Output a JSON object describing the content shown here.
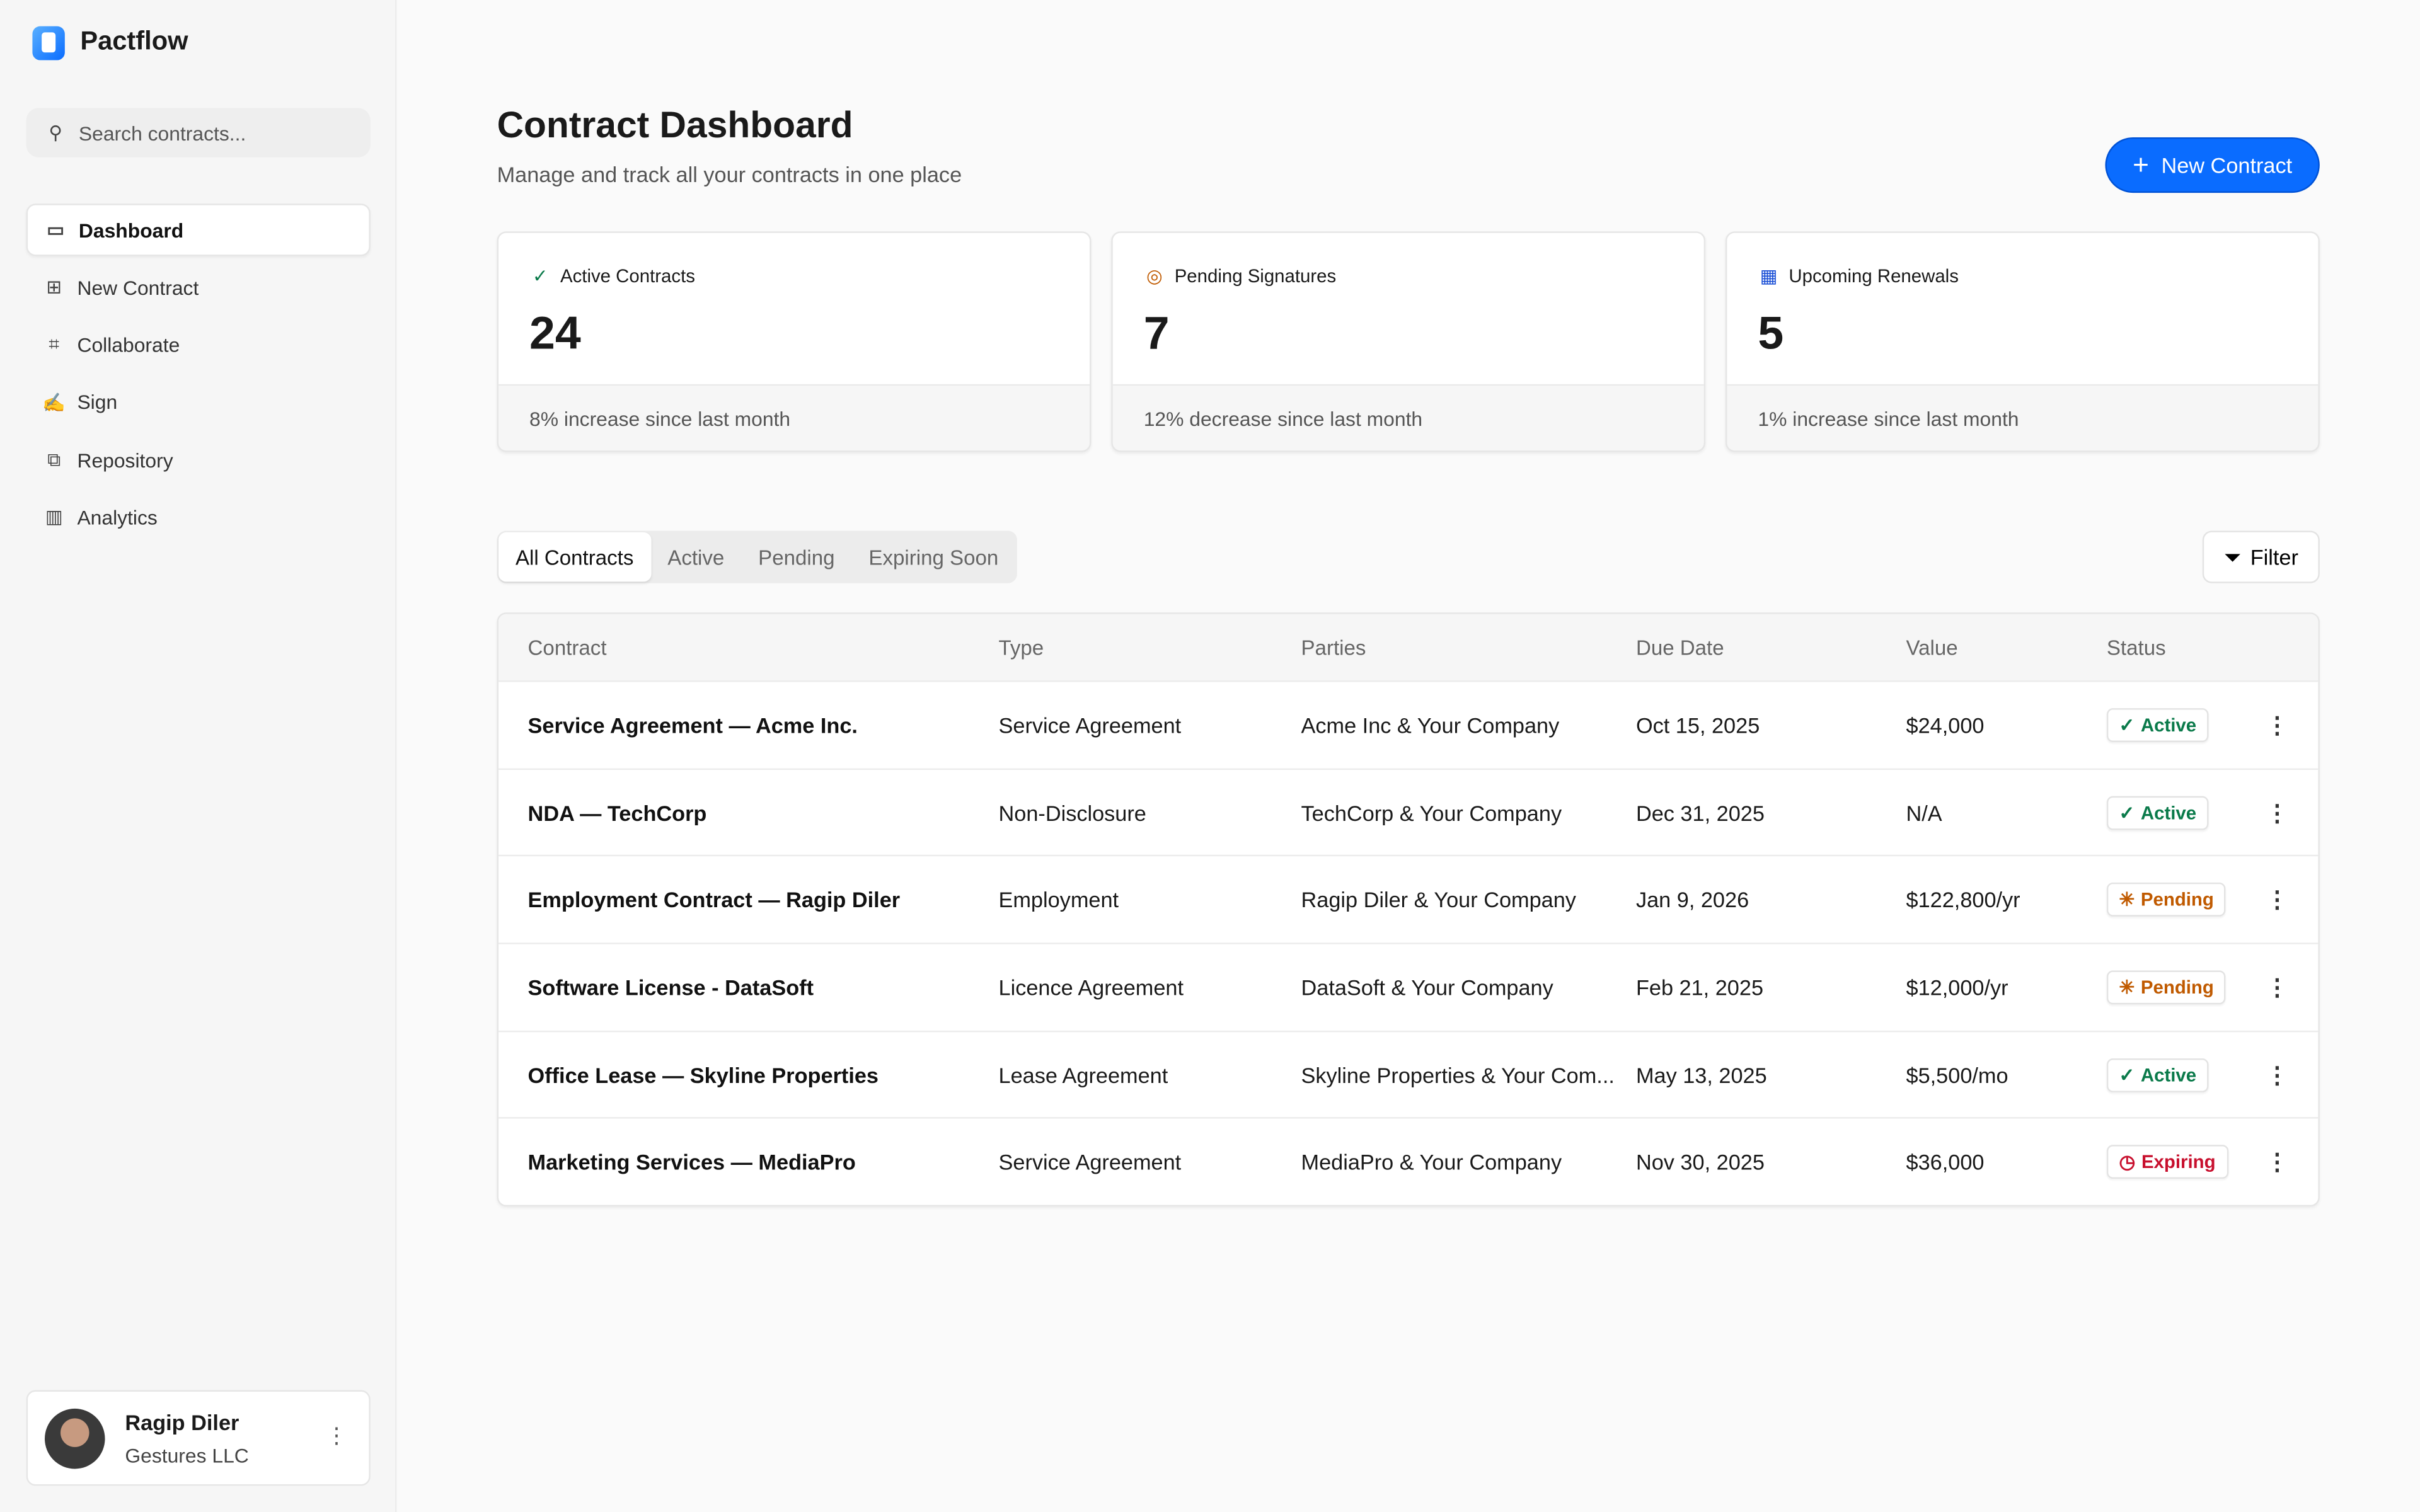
{
  "app": {
    "name": "Pactflow"
  },
  "sidebar": {
    "search_placeholder": "Search contracts...",
    "items": [
      {
        "label": "Dashboard",
        "icon": "dashboard-icon"
      },
      {
        "label": "New Contract",
        "icon": "file-plus-icon"
      },
      {
        "label": "Collaborate",
        "icon": "collaborate-icon"
      },
      {
        "label": "Sign",
        "icon": "signature-icon"
      },
      {
        "label": "Repository",
        "icon": "repository-icon"
      },
      {
        "label": "Analytics",
        "icon": "analytics-icon"
      }
    ],
    "user": {
      "name": "Ragip Diler",
      "org": "Gestures LLC"
    }
  },
  "header": {
    "title": "Contract Dashboard",
    "subtitle": "Manage and track all your contracts in one place",
    "new_button": "New Contract"
  },
  "stats": [
    {
      "label": "Active Contracts",
      "value": "24",
      "note": "8% increase since last month",
      "color": "#0a7a4a"
    },
    {
      "label": "Pending Signatures",
      "value": "7",
      "note": "12% decrease since last month",
      "color": "#c05a00"
    },
    {
      "label": "Upcoming Renewals",
      "value": "5",
      "note": "1% increase since last month",
      "color": "#1a4fd6"
    }
  ],
  "tabs": [
    "All Contracts",
    "Active",
    "Pending",
    "Expiring Soon"
  ],
  "filter_label": "Filter",
  "table": {
    "columns": [
      "Contract",
      "Type",
      "Parties",
      "Due Date",
      "Value",
      "Status"
    ],
    "rows": [
      [
        "Service Agreement — Acme Inc.",
        "Service Agreement",
        "Acme Inc & Your Company",
        "Oct 15, 2025",
        "$24,000",
        "Active"
      ],
      [
        "NDA — TechCorp",
        "Non-Disclosure",
        "TechCorp & Your Company",
        "Dec 31, 2025",
        "N/A",
        "Active"
      ],
      [
        "Employment Contract — Ragip Diler",
        "Employment",
        "Ragip Diler & Your Company",
        "Jan 9, 2026",
        "$122,800/yr",
        "Pending"
      ],
      [
        "Software License - DataSoft",
        "Licence Agreement",
        "DataSoft & Your Company",
        "Feb 21, 2025",
        "$12,000/yr",
        "Pending"
      ],
      [
        "Office Lease — Skyline Properties",
        "Lease Agreement",
        "Skyline Properties & Your Com...",
        "May 13, 2025",
        "$5,500/mo",
        "Active"
      ],
      [
        "Marketing Services — MediaPro",
        "Service Agreement",
        "MediaPro & Your Company",
        "Nov 30, 2025",
        "$36,000",
        "Expiring"
      ]
    ]
  },
  "status_colors": {
    "Active": "#0a7a4a",
    "Pending": "#c05a00",
    "Expiring": "#c8102e"
  },
  "accent": "#0a6cff"
}
